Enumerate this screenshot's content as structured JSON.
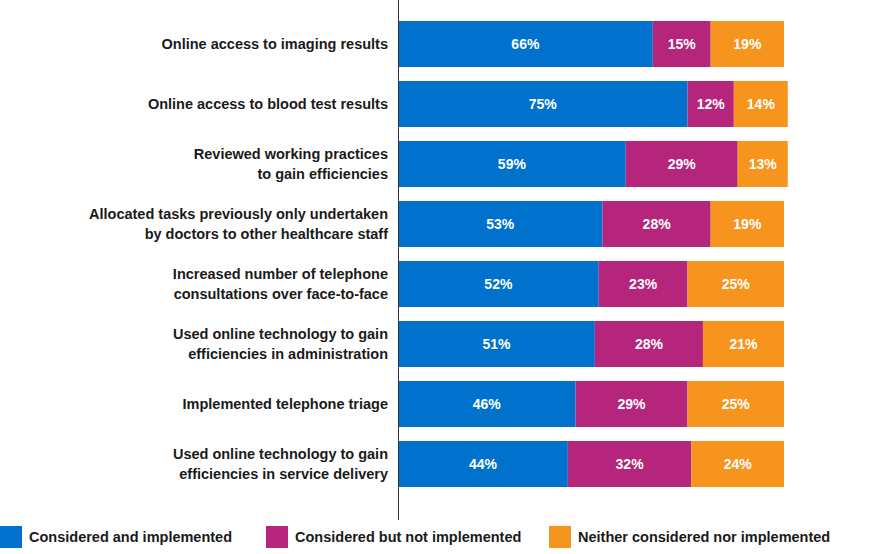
{
  "chart_data": {
    "type": "bar",
    "orientation": "horizontal",
    "stacked": true,
    "data_labels": true,
    "tick_labels": "y",
    "legend": "bottom",
    "xlim": [
      0,
      101
    ],
    "categories": [
      "Online access to imaging results",
      "Online access to blood test results",
      "Reviewed working practices\nto gain efficiencies",
      "Allocated tasks previously only undertaken\nby doctors to other healthcare staff",
      "Increased number of telephone\nconsultations over face-to-face",
      "Used online technology to gain\nefficiencies in administration",
      "Implemented telephone triage",
      "Used online technology to gain\nefficiencies in service delivery"
    ],
    "series": [
      {
        "name": "Considered and implemented",
        "color": "#0072ce",
        "values": [
          66,
          75,
          59,
          53,
          52,
          51,
          46,
          44
        ],
        "value_labels": [
          "66%",
          "75%",
          "59%",
          "53%",
          "52%",
          "51%",
          "46%",
          "44%"
        ]
      },
      {
        "name": "Considered but not implemented",
        "color": "#b5257b",
        "values": [
          15,
          12,
          29,
          28,
          23,
          28,
          29,
          32
        ],
        "value_labels": [
          "15%",
          "12%",
          "29%",
          "28%",
          "23%",
          "28%",
          "29%",
          "32%"
        ]
      },
      {
        "name": "Neither considered nor implemented",
        "color": "#f7941d",
        "values": [
          19,
          14,
          13,
          19,
          25,
          21,
          25,
          24
        ],
        "value_labels": [
          "19%",
          "14%",
          "13%",
          "19%",
          "25%",
          "21%",
          "25%",
          "24%"
        ]
      }
    ]
  }
}
